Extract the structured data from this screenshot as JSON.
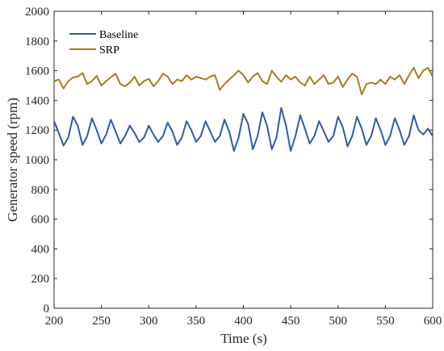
{
  "chart_data": {
    "type": "line",
    "xlabel": "Time (s)",
    "ylabel": "Generator speed (rpm)",
    "xlim": [
      200,
      600
    ],
    "ylim": [
      0,
      2000
    ],
    "xticks": [
      200,
      250,
      300,
      350,
      400,
      450,
      500,
      550,
      600
    ],
    "yticks": [
      0,
      200,
      400,
      600,
      800,
      1000,
      1200,
      1400,
      1600,
      1800,
      2000
    ],
    "grid": false,
    "legend_position": "top-left",
    "series": [
      {
        "name": "Baseline",
        "color": "#2f5aa8",
        "x": [
          200,
          205,
          210,
          215,
          220,
          225,
          230,
          235,
          240,
          245,
          250,
          255,
          260,
          265,
          270,
          275,
          280,
          285,
          290,
          295,
          300,
          305,
          310,
          315,
          320,
          325,
          330,
          335,
          340,
          345,
          350,
          355,
          360,
          365,
          370,
          375,
          380,
          385,
          390,
          395,
          400,
          405,
          410,
          415,
          420,
          425,
          430,
          435,
          440,
          445,
          450,
          455,
          460,
          465,
          470,
          475,
          480,
          485,
          490,
          495,
          500,
          505,
          510,
          515,
          520,
          525,
          530,
          535,
          540,
          545,
          550,
          555,
          560,
          565,
          570,
          575,
          580,
          585,
          590,
          595,
          600
        ],
        "y": [
          1260,
          1180,
          1095,
          1150,
          1290,
          1230,
          1100,
          1160,
          1280,
          1200,
          1110,
          1170,
          1270,
          1190,
          1110,
          1160,
          1230,
          1180,
          1120,
          1150,
          1230,
          1170,
          1120,
          1160,
          1250,
          1190,
          1100,
          1150,
          1260,
          1200,
          1120,
          1160,
          1260,
          1190,
          1120,
          1160,
          1270,
          1190,
          1060,
          1150,
          1310,
          1240,
          1070,
          1160,
          1320,
          1230,
          1070,
          1150,
          1350,
          1230,
          1060,
          1160,
          1300,
          1210,
          1110,
          1160,
          1260,
          1190,
          1120,
          1160,
          1290,
          1220,
          1090,
          1160,
          1290,
          1210,
          1100,
          1160,
          1280,
          1200,
          1100,
          1160,
          1280,
          1200,
          1100,
          1160,
          1300,
          1200,
          1170,
          1210,
          1160
        ]
      },
      {
        "name": "SRP",
        "color": "#a37d22",
        "x": [
          200,
          205,
          210,
          215,
          220,
          225,
          230,
          235,
          240,
          245,
          250,
          255,
          260,
          265,
          270,
          275,
          280,
          285,
          290,
          295,
          300,
          305,
          310,
          315,
          320,
          325,
          330,
          335,
          340,
          345,
          350,
          355,
          360,
          365,
          370,
          375,
          380,
          385,
          390,
          395,
          400,
          405,
          410,
          415,
          420,
          425,
          430,
          435,
          440,
          445,
          450,
          455,
          460,
          465,
          470,
          475,
          480,
          485,
          490,
          495,
          500,
          505,
          510,
          515,
          520,
          525,
          530,
          535,
          540,
          545,
          550,
          555,
          560,
          565,
          570,
          575,
          580,
          585,
          590,
          595,
          600
        ],
        "y": [
          1530,
          1540,
          1480,
          1530,
          1555,
          1560,
          1585,
          1510,
          1530,
          1565,
          1500,
          1530,
          1555,
          1580,
          1510,
          1495,
          1520,
          1560,
          1500,
          1530,
          1545,
          1495,
          1530,
          1580,
          1560,
          1510,
          1540,
          1530,
          1570,
          1540,
          1560,
          1550,
          1540,
          1560,
          1570,
          1470,
          1510,
          1540,
          1570,
          1600,
          1570,
          1520,
          1560,
          1585,
          1530,
          1510,
          1600,
          1560,
          1525,
          1570,
          1540,
          1560,
          1520,
          1500,
          1560,
          1510,
          1540,
          1570,
          1510,
          1520,
          1560,
          1490,
          1540,
          1580,
          1560,
          1440,
          1510,
          1520,
          1510,
          1540,
          1510,
          1560,
          1540,
          1570,
          1510,
          1570,
          1620,
          1550,
          1600,
          1620,
          1560
        ]
      }
    ]
  }
}
